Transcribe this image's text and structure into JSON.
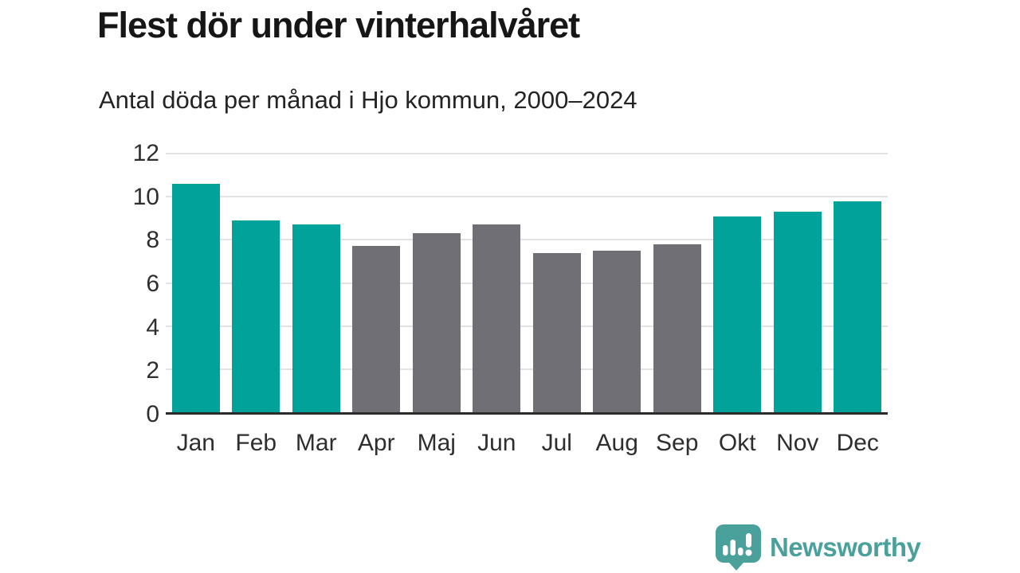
{
  "page": {
    "title": "Flest dör under vinterhalvåret",
    "subtitle": "Antal döda per månad i Hjo kommun, 2000–2024"
  },
  "chart_data": {
    "type": "bar",
    "title": "Flest dör under vinterhalvåret",
    "subtitle": "Antal döda per månad i Hjo kommun, 2000–2024",
    "categories": [
      "Jan",
      "Feb",
      "Mar",
      "Apr",
      "Maj",
      "Jun",
      "Jul",
      "Aug",
      "Sep",
      "Okt",
      "Nov",
      "Dec"
    ],
    "values": [
      10.6,
      8.9,
      8.7,
      7.7,
      8.3,
      8.7,
      7.4,
      7.5,
      7.8,
      9.1,
      9.3,
      9.8
    ],
    "bar_color_keys": [
      "winter",
      "winter",
      "winter",
      "summer",
      "summer",
      "summer",
      "summer",
      "summer",
      "summer",
      "winter",
      "winter",
      "winter"
    ],
    "colors": {
      "winter": "#00a29a",
      "summer": "#706f75",
      "grid": "#e3e3e3",
      "axis": "#2b2b2b",
      "tick_text": "#2e2e2e"
    },
    "xlabel": "",
    "ylabel": "",
    "ylim": [
      0,
      12
    ],
    "yticks": [
      0,
      2,
      4,
      6,
      8,
      10,
      12
    ],
    "grid": "horizontal",
    "legend": "none"
  },
  "branding": {
    "name": "Newsworthy",
    "icon": "speech-bubble-bar-chart-icon",
    "color": "#4aa09b"
  }
}
